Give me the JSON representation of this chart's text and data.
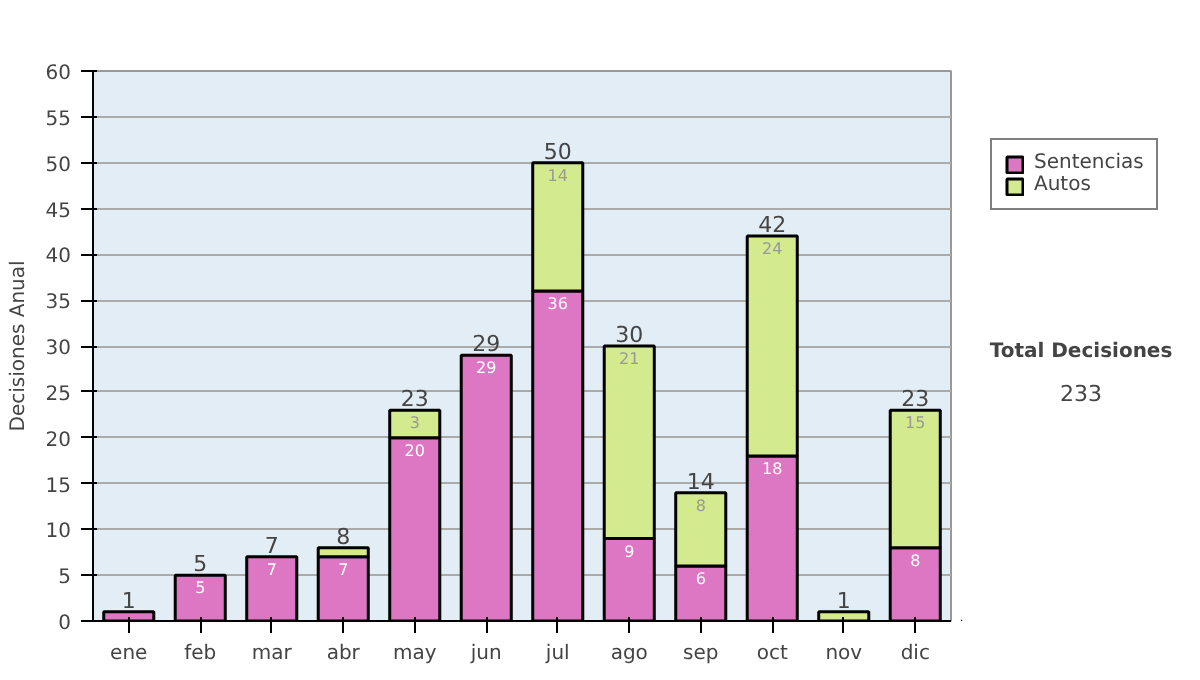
{
  "chart_data": {
    "type": "bar",
    "stacked": true,
    "ylabel": "Decisiones Anual",
    "categories": [
      "ene",
      "feb",
      "mar",
      "abr",
      "may",
      "jun",
      "jul",
      "ago",
      "sep",
      "oct",
      "nov",
      "dic"
    ],
    "series": [
      {
        "name": "Sentencias",
        "color": "#dd77c4",
        "values": [
          1,
          5,
          7,
          7,
          20,
          29,
          36,
          9,
          6,
          18,
          null,
          8
        ],
        "value_labels": [
          null,
          "5",
          "7",
          "7",
          "20",
          "29",
          "36",
          "9",
          "6",
          "18",
          null,
          "8"
        ]
      },
      {
        "name": "Autos",
        "color": "#d4ea8e",
        "values": [
          null,
          null,
          null,
          1,
          3,
          null,
          14,
          21,
          8,
          24,
          1,
          15
        ],
        "value_labels": [
          null,
          null,
          null,
          null,
          "3",
          null,
          "14",
          "21",
          "8",
          "24",
          null,
          "15"
        ]
      }
    ],
    "totals": [
      "1",
      "5",
      "7",
      "8",
      "23",
      "29",
      "50",
      "30",
      "14",
      "42",
      "1",
      "23"
    ],
    "ylim": [
      0,
      60
    ],
    "yticks": [
      0,
      5,
      10,
      15,
      20,
      25,
      30,
      35,
      40,
      45,
      50,
      55,
      60
    ],
    "grid": "y",
    "legend": "right",
    "annotations": [
      "Total Decisiones",
      "233"
    ]
  }
}
